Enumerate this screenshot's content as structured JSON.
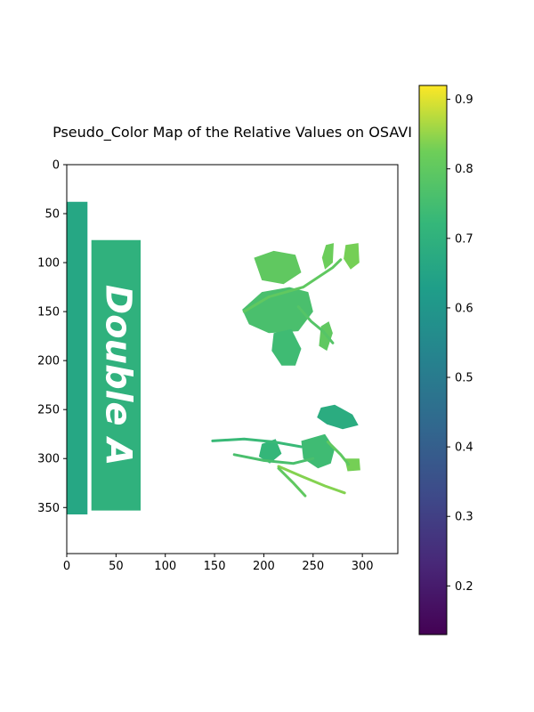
{
  "chart_data": {
    "type": "heatmap",
    "title": "Pseudo_Color Map of the Relative Values on OSAVI",
    "xlabel": "",
    "ylabel": "",
    "image_size": [
      336,
      397
    ],
    "xlim": [
      0,
      336
    ],
    "ylim": [
      397,
      0
    ],
    "x_ticks": [
      0,
      50,
      100,
      150,
      200,
      250,
      300
    ],
    "y_ticks": [
      0,
      50,
      100,
      150,
      200,
      250,
      300,
      350
    ],
    "colormap": "viridis",
    "colorbar": {
      "range": [
        0.13,
        0.92
      ],
      "ticks": [
        0.2,
        0.3,
        0.4,
        0.5,
        0.6,
        0.7,
        0.8,
        0.9
      ],
      "tick_labels": [
        "0.2",
        "0.3",
        "0.4",
        "0.5",
        "0.6",
        "0.7",
        "0.8",
        "0.9"
      ]
    },
    "paper_text": "Double A",
    "regions": [
      {
        "name": "paper-sheet-left",
        "polygon": [
          [
            0,
            38
          ],
          [
            21,
            38
          ],
          [
            21,
            357
          ],
          [
            0,
            357
          ]
        ],
        "value": 0.66
      },
      {
        "name": "paper-sheet-right",
        "polygon": [
          [
            25,
            77
          ],
          [
            75,
            77
          ],
          [
            75,
            353
          ],
          [
            25,
            353
          ]
        ],
        "value": 0.7
      },
      {
        "name": "leaf-1",
        "polygon": [
          [
            190,
            95
          ],
          [
            210,
            88
          ],
          [
            232,
            92
          ],
          [
            238,
            110
          ],
          [
            220,
            122
          ],
          [
            198,
            118
          ]
        ],
        "value": 0.8
      },
      {
        "name": "leaf-2",
        "polygon": [
          [
            178,
            148
          ],
          [
            198,
            130
          ],
          [
            226,
            125
          ],
          [
            245,
            130
          ],
          [
            250,
            150
          ],
          [
            235,
            170
          ],
          [
            205,
            172
          ],
          [
            185,
            163
          ]
        ],
        "value": 0.76
      },
      {
        "name": "leaf-3",
        "polygon": [
          [
            210,
            172
          ],
          [
            228,
            168
          ],
          [
            238,
            188
          ],
          [
            232,
            205
          ],
          [
            218,
            205
          ],
          [
            208,
            190
          ]
        ],
        "value": 0.74
      },
      {
        "name": "leaf-4",
        "polygon": [
          [
            258,
            165
          ],
          [
            266,
            160
          ],
          [
            270,
            172
          ],
          [
            264,
            190
          ],
          [
            256,
            185
          ]
        ],
        "value": 0.8
      },
      {
        "name": "leaf-5",
        "polygon": [
          [
            263,
            82
          ],
          [
            271,
            80
          ],
          [
            270,
            100
          ],
          [
            262,
            107
          ],
          [
            259,
            95
          ]
        ],
        "value": 0.82
      },
      {
        "name": "leaf-6",
        "polygon": [
          [
            283,
            82
          ],
          [
            296,
            80
          ],
          [
            297,
            100
          ],
          [
            288,
            107
          ],
          [
            281,
            96
          ]
        ],
        "value": 0.83
      },
      {
        "name": "leaf-7",
        "polygon": [
          [
            258,
            248
          ],
          [
            272,
            245
          ],
          [
            290,
            255
          ],
          [
            296,
            266
          ],
          [
            280,
            270
          ],
          [
            264,
            265
          ],
          [
            254,
            258
          ]
        ],
        "value": 0.68
      },
      {
        "name": "leaf-8",
        "polygon": [
          [
            238,
            282
          ],
          [
            262,
            275
          ],
          [
            272,
            290
          ],
          [
            268,
            305
          ],
          [
            255,
            310
          ],
          [
            240,
            300
          ]
        ],
        "value": 0.74
      },
      {
        "name": "leaf-9",
        "polygon": [
          [
            198,
            285
          ],
          [
            212,
            280
          ],
          [
            218,
            295
          ],
          [
            206,
            305
          ],
          [
            195,
            298
          ]
        ],
        "value": 0.72
      },
      {
        "name": "leaf-10",
        "polygon": [
          [
            282,
            300
          ],
          [
            297,
            300
          ],
          [
            298,
            312
          ],
          [
            285,
            313
          ]
        ],
        "value": 0.83
      }
    ],
    "strokes": [
      {
        "name": "stem-1",
        "points": [
          [
            180,
            150
          ],
          [
            205,
            135
          ],
          [
            240,
            125
          ],
          [
            270,
            105
          ],
          [
            278,
            97
          ]
        ],
        "value": 0.8
      },
      {
        "name": "stem-2",
        "points": [
          [
            235,
            145
          ],
          [
            248,
            160
          ],
          [
            260,
            170
          ],
          [
            270,
            182
          ]
        ],
        "value": 0.78
      },
      {
        "name": "stem-3",
        "points": [
          [
            215,
            308
          ],
          [
            238,
            318
          ],
          [
            262,
            328
          ],
          [
            282,
            335
          ]
        ],
        "value": 0.84
      },
      {
        "name": "stem-4",
        "points": [
          [
            215,
            310
          ],
          [
            230,
            325
          ],
          [
            242,
            338
          ]
        ],
        "value": 0.8
      },
      {
        "name": "stem-5",
        "points": [
          [
            148,
            282
          ],
          [
            180,
            280
          ],
          [
            210,
            283
          ],
          [
            238,
            288
          ]
        ],
        "value": 0.73
      },
      {
        "name": "stem-6",
        "points": [
          [
            170,
            296
          ],
          [
            200,
            302
          ],
          [
            230,
            305
          ],
          [
            250,
            300
          ]
        ],
        "value": 0.76
      },
      {
        "name": "stem-7",
        "points": [
          [
            265,
            283
          ],
          [
            278,
            296
          ],
          [
            286,
            306
          ]
        ],
        "value": 0.8
      }
    ]
  }
}
